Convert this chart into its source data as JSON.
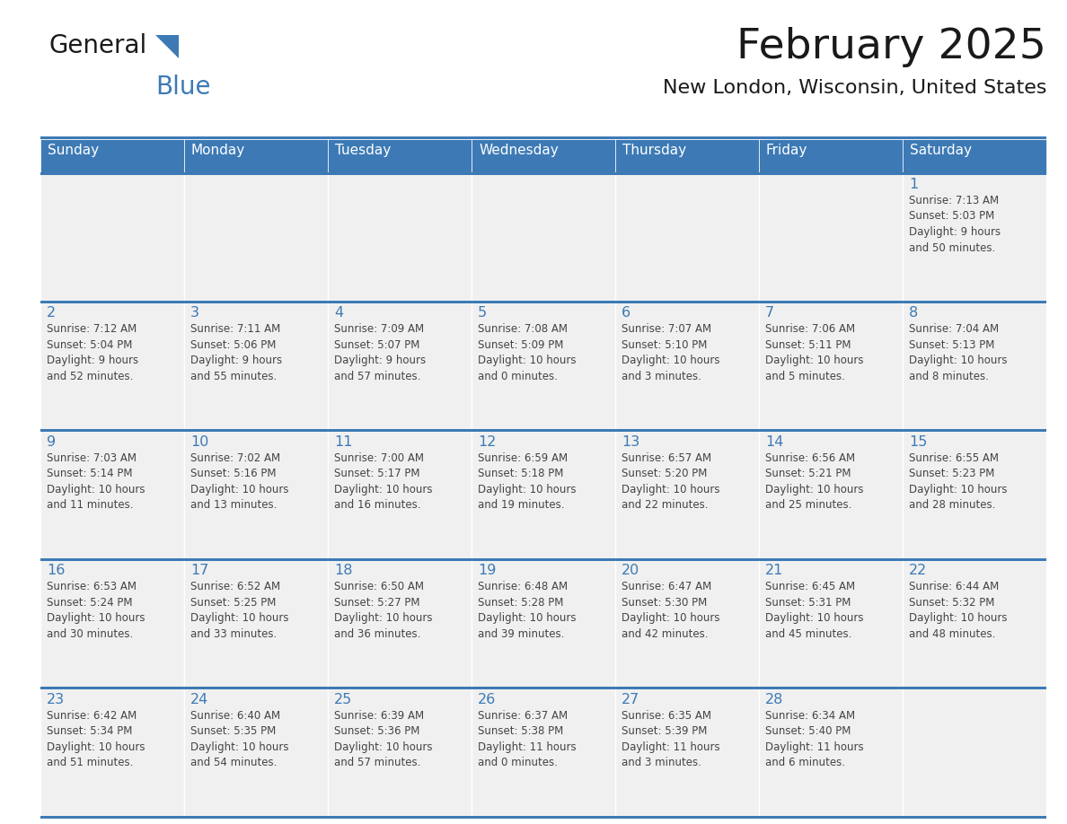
{
  "title": "February 2025",
  "subtitle": "New London, Wisconsin, United States",
  "header_color": "#3d7ab5",
  "header_text_color": "#ffffff",
  "cell_bg_color": "#f0f0f0",
  "separator_color": "#3d7ab5",
  "day_number_color": "#3d7ab5",
  "text_color": "#444444",
  "logo_general_color": "#1a1a1a",
  "logo_blue_color": "#3d7ab5",
  "logo_triangle_color": "#3d7ab5",
  "days_of_week": [
    "Sunday",
    "Monday",
    "Tuesday",
    "Wednesday",
    "Thursday",
    "Friday",
    "Saturday"
  ],
  "weeks": [
    [
      {
        "day": null,
        "info": null
      },
      {
        "day": null,
        "info": null
      },
      {
        "day": null,
        "info": null
      },
      {
        "day": null,
        "info": null
      },
      {
        "day": null,
        "info": null
      },
      {
        "day": null,
        "info": null
      },
      {
        "day": 1,
        "info": "Sunrise: 7:13 AM\nSunset: 5:03 PM\nDaylight: 9 hours\nand 50 minutes."
      }
    ],
    [
      {
        "day": 2,
        "info": "Sunrise: 7:12 AM\nSunset: 5:04 PM\nDaylight: 9 hours\nand 52 minutes."
      },
      {
        "day": 3,
        "info": "Sunrise: 7:11 AM\nSunset: 5:06 PM\nDaylight: 9 hours\nand 55 minutes."
      },
      {
        "day": 4,
        "info": "Sunrise: 7:09 AM\nSunset: 5:07 PM\nDaylight: 9 hours\nand 57 minutes."
      },
      {
        "day": 5,
        "info": "Sunrise: 7:08 AM\nSunset: 5:09 PM\nDaylight: 10 hours\nand 0 minutes."
      },
      {
        "day": 6,
        "info": "Sunrise: 7:07 AM\nSunset: 5:10 PM\nDaylight: 10 hours\nand 3 minutes."
      },
      {
        "day": 7,
        "info": "Sunrise: 7:06 AM\nSunset: 5:11 PM\nDaylight: 10 hours\nand 5 minutes."
      },
      {
        "day": 8,
        "info": "Sunrise: 7:04 AM\nSunset: 5:13 PM\nDaylight: 10 hours\nand 8 minutes."
      }
    ],
    [
      {
        "day": 9,
        "info": "Sunrise: 7:03 AM\nSunset: 5:14 PM\nDaylight: 10 hours\nand 11 minutes."
      },
      {
        "day": 10,
        "info": "Sunrise: 7:02 AM\nSunset: 5:16 PM\nDaylight: 10 hours\nand 13 minutes."
      },
      {
        "day": 11,
        "info": "Sunrise: 7:00 AM\nSunset: 5:17 PM\nDaylight: 10 hours\nand 16 minutes."
      },
      {
        "day": 12,
        "info": "Sunrise: 6:59 AM\nSunset: 5:18 PM\nDaylight: 10 hours\nand 19 minutes."
      },
      {
        "day": 13,
        "info": "Sunrise: 6:57 AM\nSunset: 5:20 PM\nDaylight: 10 hours\nand 22 minutes."
      },
      {
        "day": 14,
        "info": "Sunrise: 6:56 AM\nSunset: 5:21 PM\nDaylight: 10 hours\nand 25 minutes."
      },
      {
        "day": 15,
        "info": "Sunrise: 6:55 AM\nSunset: 5:23 PM\nDaylight: 10 hours\nand 28 minutes."
      }
    ],
    [
      {
        "day": 16,
        "info": "Sunrise: 6:53 AM\nSunset: 5:24 PM\nDaylight: 10 hours\nand 30 minutes."
      },
      {
        "day": 17,
        "info": "Sunrise: 6:52 AM\nSunset: 5:25 PM\nDaylight: 10 hours\nand 33 minutes."
      },
      {
        "day": 18,
        "info": "Sunrise: 6:50 AM\nSunset: 5:27 PM\nDaylight: 10 hours\nand 36 minutes."
      },
      {
        "day": 19,
        "info": "Sunrise: 6:48 AM\nSunset: 5:28 PM\nDaylight: 10 hours\nand 39 minutes."
      },
      {
        "day": 20,
        "info": "Sunrise: 6:47 AM\nSunset: 5:30 PM\nDaylight: 10 hours\nand 42 minutes."
      },
      {
        "day": 21,
        "info": "Sunrise: 6:45 AM\nSunset: 5:31 PM\nDaylight: 10 hours\nand 45 minutes."
      },
      {
        "day": 22,
        "info": "Sunrise: 6:44 AM\nSunset: 5:32 PM\nDaylight: 10 hours\nand 48 minutes."
      }
    ],
    [
      {
        "day": 23,
        "info": "Sunrise: 6:42 AM\nSunset: 5:34 PM\nDaylight: 10 hours\nand 51 minutes."
      },
      {
        "day": 24,
        "info": "Sunrise: 6:40 AM\nSunset: 5:35 PM\nDaylight: 10 hours\nand 54 minutes."
      },
      {
        "day": 25,
        "info": "Sunrise: 6:39 AM\nSunset: 5:36 PM\nDaylight: 10 hours\nand 57 minutes."
      },
      {
        "day": 26,
        "info": "Sunrise: 6:37 AM\nSunset: 5:38 PM\nDaylight: 11 hours\nand 0 minutes."
      },
      {
        "day": 27,
        "info": "Sunrise: 6:35 AM\nSunset: 5:39 PM\nDaylight: 11 hours\nand 3 minutes."
      },
      {
        "day": 28,
        "info": "Sunrise: 6:34 AM\nSunset: 5:40 PM\nDaylight: 11 hours\nand 6 minutes."
      },
      {
        "day": null,
        "info": null
      }
    ]
  ]
}
